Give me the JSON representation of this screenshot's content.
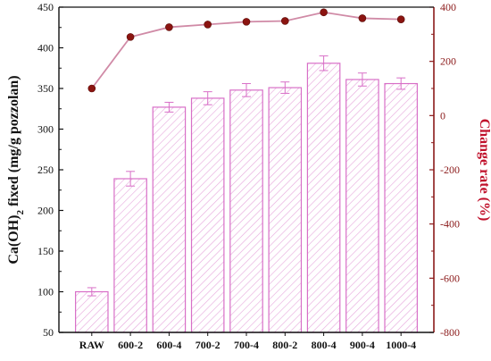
{
  "chart_data": {
    "type": "bar",
    "categories": [
      "RAW",
      "600-2",
      "600-4",
      "700-2",
      "700-4",
      "800-2",
      "800-4",
      "900-4",
      "1000-4"
    ],
    "series": [
      {
        "kind": "bar",
        "axis": "left",
        "values": [
          100,
          239,
          327,
          338,
          348,
          351,
          381,
          361,
          356
        ],
        "errors": [
          5,
          9,
          6,
          8,
          8,
          7,
          9,
          8,
          7
        ]
      },
      {
        "kind": "line",
        "axis": "right",
        "values": [
          100,
          290,
          326,
          336,
          346,
          349,
          381,
          359,
          355
        ]
      }
    ],
    "ylabel_left": "Ca(OH)",
    "ylabel_left_sub": "2",
    "ylabel_left_rest": " fixed (mg/g pozzolan)",
    "ylabel_right": "Change rate (%)",
    "ylim_left": [
      50,
      450
    ],
    "yticks_left": [
      "50",
      "100",
      "150",
      "200",
      "250",
      "300",
      "350",
      "400",
      "450"
    ],
    "ylim_right": [
      -800,
      400
    ],
    "yticks_right": [
      "-800",
      "-600",
      "-400",
      "-200",
      "0",
      "200",
      "400"
    ],
    "colors": {
      "bar_stroke": "#d86fc7",
      "bar_hatch": "#e6a6dc",
      "line": "#d08aa6",
      "marker_fill": "#8b1410",
      "right_axis": "#8b1a1a",
      "right_title": "#c0102b"
    },
    "grid": false,
    "legend": "none"
  }
}
